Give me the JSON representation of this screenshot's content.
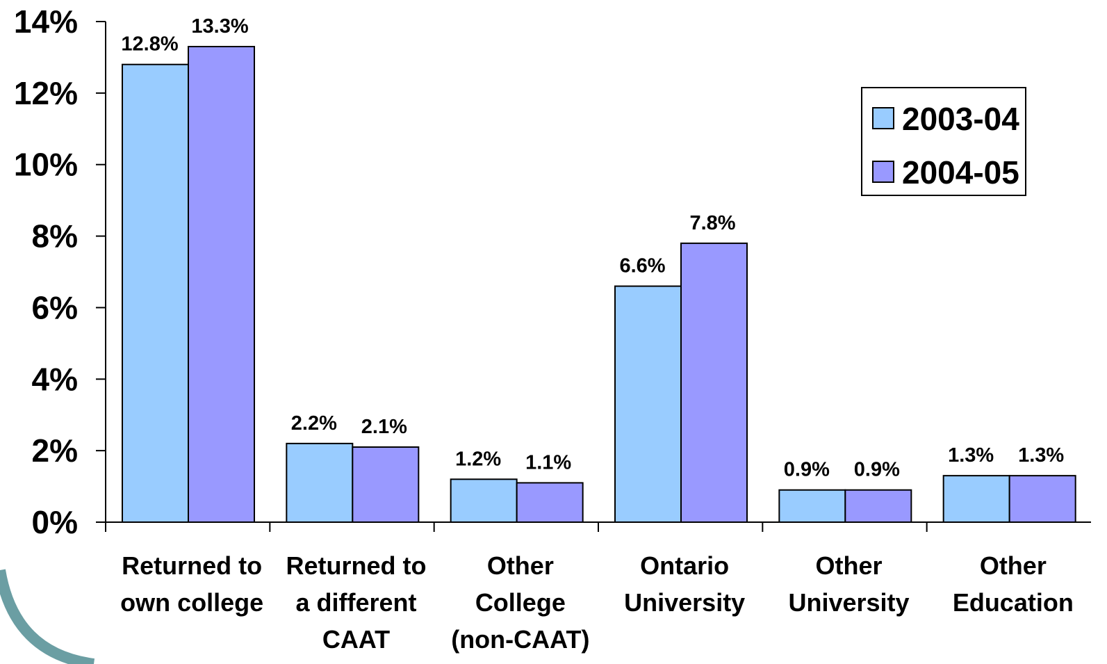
{
  "chart_data": {
    "type": "bar",
    "categories": [
      [
        "Returned to",
        "own college"
      ],
      [
        "Returned to",
        "a different",
        "CAAT"
      ],
      [
        "Other",
        "College",
        "(non-CAAT)"
      ],
      [
        "Ontario",
        "University"
      ],
      [
        "Other",
        "University"
      ],
      [
        "Other",
        "Education"
      ]
    ],
    "series": [
      {
        "name": "2003-04",
        "values": [
          12.8,
          2.2,
          1.2,
          6.6,
          0.9,
          1.3
        ],
        "labels": [
          "12.8%",
          "2.2%",
          "1.2%",
          "6.6%",
          "0.9%",
          "1.3%"
        ],
        "color": "#99ccff"
      },
      {
        "name": "2004-05",
        "values": [
          13.3,
          2.1,
          1.1,
          7.8,
          0.9,
          1.3
        ],
        "labels": [
          "13.3%",
          "2.1%",
          "1.1%",
          "7.8%",
          "0.9%",
          "1.3%"
        ],
        "color": "#9999ff"
      }
    ],
    "y_ticks": [
      "0%",
      "2%",
      "4%",
      "6%",
      "8%",
      "10%",
      "12%",
      "14%"
    ],
    "ylim": [
      0,
      14
    ],
    "legend_position": "top-right",
    "grid": false
  },
  "decoration": {
    "arc_color": "#6b9ea3"
  }
}
